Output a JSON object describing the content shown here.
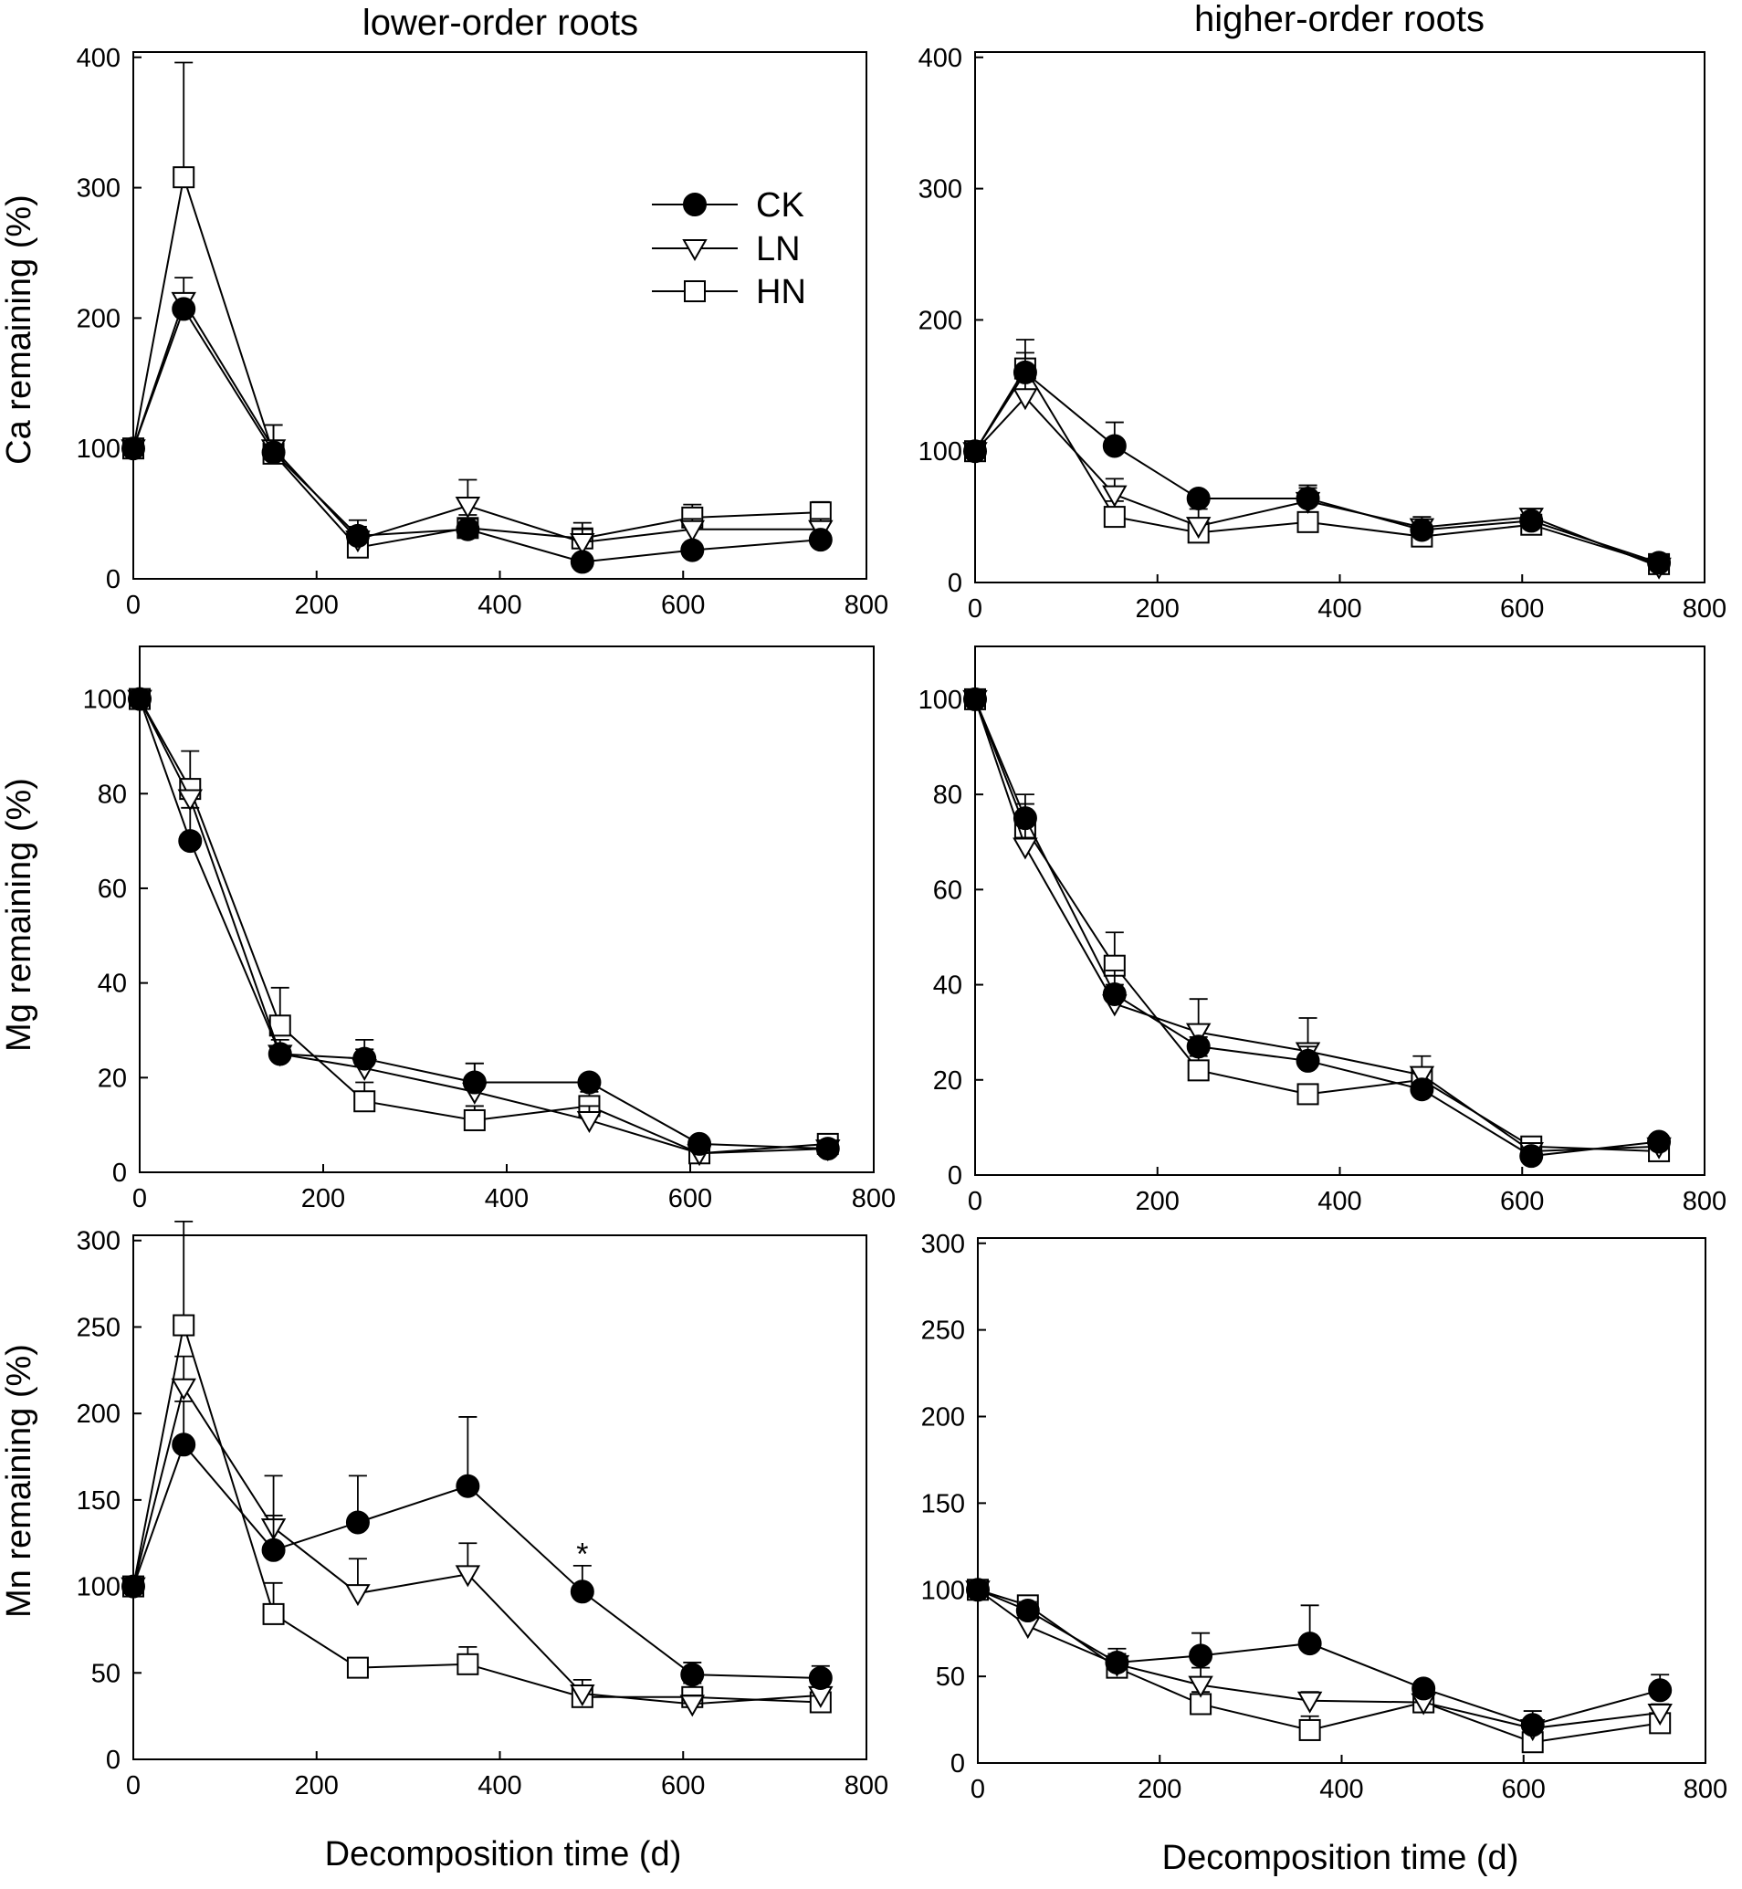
{
  "column_titles": [
    "lower-order roots",
    "higher-order roots"
  ],
  "row_ylabels": [
    "Ca remaining (%)",
    "Mg remaining (%)",
    "Mn remaining (%)"
  ],
  "xlabel": "Decomposition time (d)",
  "legend": [
    {
      "label": "CK",
      "marker": "filled-circle"
    },
    {
      "label": "LN",
      "marker": "open-triangle-down"
    },
    {
      "label": "HN",
      "marker": "open-square"
    }
  ],
  "colors": {
    "ink": "#000000",
    "background": "#ffffff",
    "open_marker_fill": "#ffffff"
  },
  "chart_data": [
    {
      "id": "ca-lower",
      "type": "line",
      "title": "lower-order roots",
      "xlabel": "",
      "ylabel": "Ca remaining (%)",
      "xlim": [
        0,
        800
      ],
      "ylim": [
        0,
        400
      ],
      "xticks": [
        0,
        200,
        400,
        600,
        800
      ],
      "yticks": [
        0,
        100,
        200,
        300,
        400
      ],
      "x": [
        0,
        55,
        153,
        245,
        365,
        490,
        610,
        750
      ],
      "series": [
        {
          "name": "CK",
          "values": [
            100,
            207,
            97,
            33,
            38,
            13,
            22,
            30
          ],
          "err": [
            0,
            0,
            0,
            12,
            8,
            0,
            0,
            5
          ]
        },
        {
          "name": "LN",
          "values": [
            100,
            213,
            100,
            30,
            56,
            28,
            38,
            38
          ],
          "err": [
            0,
            18,
            18,
            0,
            20,
            10,
            8,
            8
          ]
        },
        {
          "name": "HN",
          "values": [
            100,
            308,
            96,
            24,
            39,
            31,
            47,
            51
          ],
          "err": [
            0,
            88,
            22,
            16,
            10,
            12,
            10,
            8
          ]
        }
      ],
      "annotations": []
    },
    {
      "id": "ca-higher",
      "type": "line",
      "title": "higher-order roots",
      "xlabel": "",
      "ylabel": "",
      "xlim": [
        0,
        800
      ],
      "ylim": [
        0,
        400
      ],
      "xticks": [
        0,
        200,
        400,
        600,
        800
      ],
      "yticks": [
        0,
        100,
        200,
        300,
        400
      ],
      "x": [
        0,
        55,
        153,
        245,
        365,
        490,
        610,
        750
      ],
      "series": [
        {
          "name": "CK",
          "values": [
            100,
            160,
            104,
            64,
            64,
            40,
            47,
            15
          ],
          "err": [
            0,
            15,
            18,
            0,
            10,
            0,
            0,
            0
          ]
        },
        {
          "name": "LN",
          "values": [
            100,
            141,
            67,
            43,
            62,
            42,
            50,
            12
          ],
          "err": [
            0,
            12,
            12,
            0,
            12,
            8,
            5,
            0
          ]
        },
        {
          "name": "HN",
          "values": [
            100,
            163,
            50,
            38,
            46,
            35,
            44,
            14
          ],
          "err": [
            0,
            22,
            12,
            18,
            26,
            12,
            5,
            5
          ]
        }
      ],
      "annotations": []
    },
    {
      "id": "mg-lower",
      "type": "line",
      "title": "",
      "xlabel": "",
      "ylabel": "Mg remaining (%)",
      "xlim": [
        0,
        800
      ],
      "ylim": [
        0,
        110
      ],
      "xticks": [
        0,
        200,
        400,
        600,
        800
      ],
      "yticks": [
        0,
        20,
        40,
        60,
        80,
        100
      ],
      "x": [
        0,
        55,
        153,
        245,
        365,
        490,
        610,
        750
      ],
      "series": [
        {
          "name": "CK",
          "values": [
            100,
            70,
            25,
            24,
            19,
            19,
            6,
            5
          ],
          "err": [
            0,
            7,
            0,
            4,
            4,
            0,
            1,
            0
          ]
        },
        {
          "name": "LN",
          "values": [
            100,
            79,
            25,
            22,
            17,
            11,
            4,
            5
          ],
          "err": [
            0,
            0,
            3,
            4,
            6,
            3,
            1,
            0
          ]
        },
        {
          "name": "HN",
          "values": [
            100,
            81,
            31,
            15,
            11,
            14,
            4,
            6
          ],
          "err": [
            0,
            8,
            8,
            4,
            3,
            3,
            1,
            1
          ]
        }
      ],
      "annotations": []
    },
    {
      "id": "mg-higher",
      "type": "line",
      "title": "",
      "xlabel": "",
      "ylabel": "",
      "xlim": [
        0,
        800
      ],
      "ylim": [
        0,
        110
      ],
      "xticks": [
        0,
        200,
        400,
        600,
        800
      ],
      "yticks": [
        0,
        20,
        40,
        60,
        80,
        100
      ],
      "x": [
        0,
        55,
        153,
        245,
        365,
        490,
        610,
        750
      ],
      "series": [
        {
          "name": "CK",
          "values": [
            100,
            75,
            38,
            27,
            24,
            18,
            4,
            7
          ],
          "err": [
            0,
            3,
            5,
            2,
            3,
            1,
            1,
            1
          ]
        },
        {
          "name": "LN",
          "values": [
            100,
            69,
            36,
            30,
            26,
            21,
            5,
            6
          ],
          "err": [
            0,
            6,
            4,
            7,
            7,
            4,
            1,
            1
          ]
        },
        {
          "name": "HN",
          "values": [
            100,
            73,
            44,
            22,
            17,
            20,
            6,
            5
          ],
          "err": [
            0,
            7,
            7,
            3,
            2,
            2,
            2,
            1
          ]
        }
      ],
      "annotations": []
    },
    {
      "id": "mn-lower",
      "type": "line",
      "title": "",
      "xlabel": "Decomposition time (d)",
      "ylabel": "Mn remaining (%)",
      "xlim": [
        0,
        800
      ],
      "ylim": [
        0,
        300
      ],
      "xticks": [
        0,
        200,
        400,
        600,
        800
      ],
      "yticks": [
        0,
        50,
        100,
        150,
        200,
        250,
        300
      ],
      "x": [
        0,
        55,
        153,
        245,
        365,
        490,
        610,
        750
      ],
      "series": [
        {
          "name": "CK",
          "values": [
            100,
            182,
            121,
            137,
            158,
            97,
            49,
            47
          ],
          "err": [
            0,
            25,
            20,
            27,
            40,
            15,
            7,
            7
          ]
        },
        {
          "name": "LN",
          "values": [
            100,
            215,
            134,
            96,
            107,
            38,
            32,
            37
          ],
          "err": [
            0,
            18,
            30,
            20,
            18,
            8,
            5,
            3
          ]
        },
        {
          "name": "HN",
          "values": [
            100,
            251,
            84,
            53,
            55,
            36,
            36,
            33
          ],
          "err": [
            0,
            60,
            18,
            0,
            10,
            6,
            8,
            5
          ]
        }
      ],
      "annotations": [
        {
          "text": "*",
          "x": 490,
          "y": 119
        }
      ]
    },
    {
      "id": "mn-higher",
      "type": "line",
      "title": "",
      "xlabel": "Decomposition time (d)",
      "ylabel": "",
      "xlim": [
        0,
        800
      ],
      "ylim": [
        0,
        300
      ],
      "xticks": [
        0,
        200,
        400,
        600,
        800
      ],
      "yticks": [
        0,
        50,
        100,
        150,
        200,
        250,
        300
      ],
      "x": [
        0,
        55,
        153,
        245,
        365,
        490,
        610,
        750
      ],
      "series": [
        {
          "name": "CK",
          "values": [
            100,
            88,
            58,
            62,
            69,
            43,
            22,
            42
          ],
          "err": [
            0,
            5,
            8,
            13,
            22,
            3,
            8,
            9
          ]
        },
        {
          "name": "LN",
          "values": [
            100,
            79,
            57,
            45,
            36,
            35,
            20,
            29
          ],
          "err": [
            0,
            5,
            5,
            10,
            5,
            5,
            5,
            5
          ]
        },
        {
          "name": "HN",
          "values": [
            100,
            91,
            55,
            34,
            19,
            35,
            12,
            23
          ],
          "err": [
            0,
            4,
            8,
            7,
            8,
            12,
            5,
            5
          ]
        }
      ],
      "annotations": []
    }
  ]
}
